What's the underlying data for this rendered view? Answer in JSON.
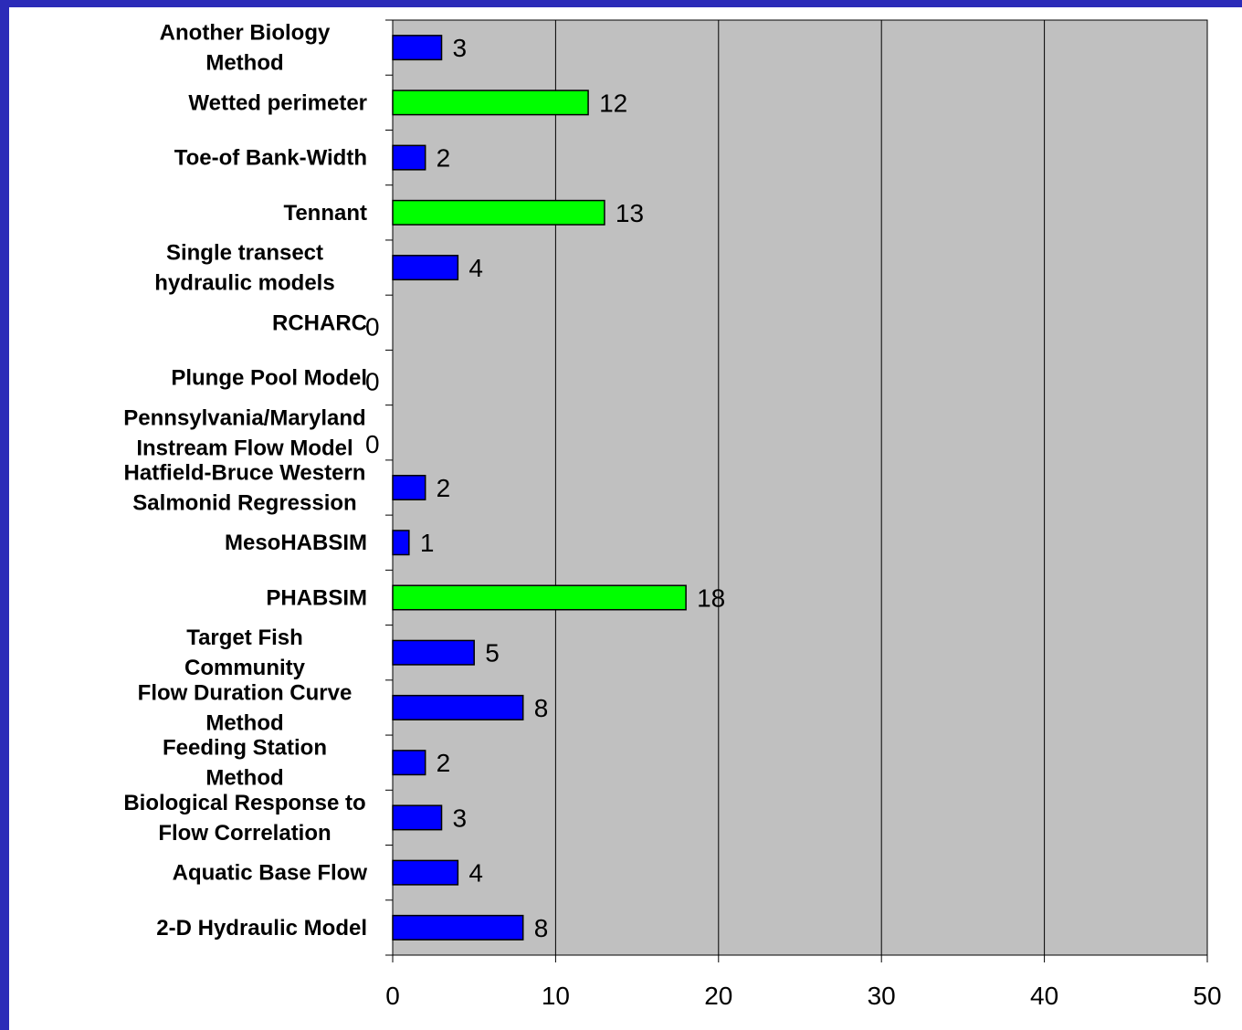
{
  "chart_data": {
    "type": "bar",
    "orientation": "horizontal",
    "categories": [
      [
        "Another Biology",
        "Method"
      ],
      [
        "Wetted perimeter"
      ],
      [
        "Toe-of Bank-Width"
      ],
      [
        "Tennant"
      ],
      [
        "Single transect ",
        "hydraulic models"
      ],
      [
        "RCHARC"
      ],
      [
        "Plunge Pool Model"
      ],
      [
        "Pennsylvania/Maryland",
        "Instream Flow Model"
      ],
      [
        "Hatfield-Bruce Western",
        "Salmonid Regression"
      ],
      [
        "MesoHABSIM"
      ],
      [
        "PHABSIM"
      ],
      [
        "Target Fish",
        "Community"
      ],
      [
        "Flow Duration Curve",
        "Method"
      ],
      [
        "Feeding Station",
        "Method"
      ],
      [
        "Biological Response to",
        "Flow Correlation"
      ],
      [
        "Aquatic Base Flow"
      ],
      [
        "2-D Hydraulic Model"
      ]
    ],
    "values": [
      3,
      12,
      2,
      13,
      4,
      0,
      0,
      0,
      2,
      1,
      18,
      5,
      8,
      2,
      3,
      4,
      8
    ],
    "bar_colors": [
      "#0000ff",
      "#00ff00",
      "#0000ff",
      "#00ff00",
      "#0000ff",
      "#0000ff",
      "#0000ff",
      "#0000ff",
      "#0000ff",
      "#0000ff",
      "#00ff00",
      "#0000ff",
      "#0000ff",
      "#0000ff",
      "#0000ff",
      "#0000ff",
      "#0000ff"
    ],
    "xlim": [
      0,
      50
    ],
    "xticks": [
      0,
      10,
      20,
      30,
      40,
      50
    ],
    "grid": "vertical",
    "plot_background": "#c0c0c0",
    "legend": "none",
    "title": "",
    "xlabel": "",
    "ylabel": ""
  }
}
